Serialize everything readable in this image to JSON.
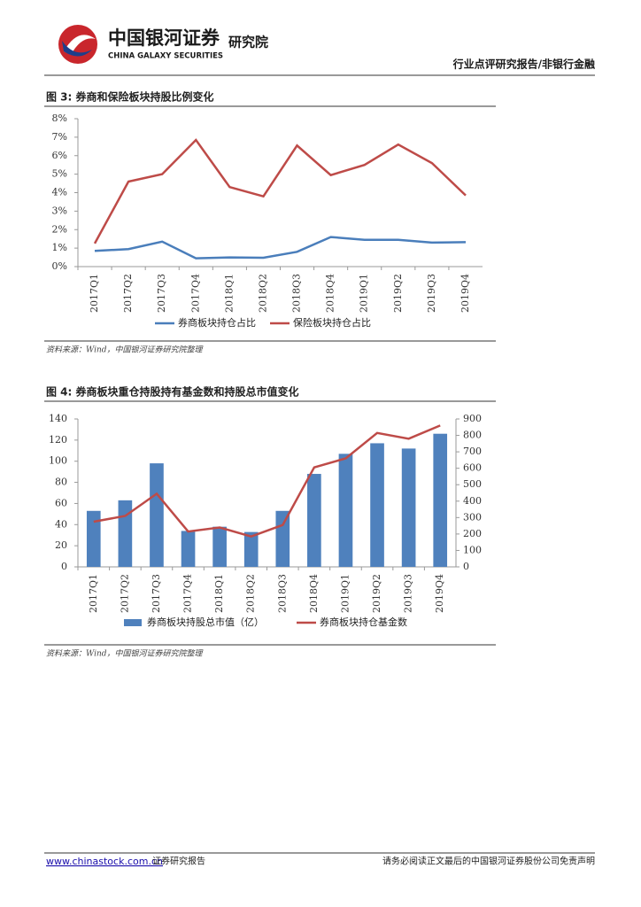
{
  "header": {
    "logo_cn": "中国银河证券",
    "logo_en": "CHINA GALAXY SECURITIES",
    "institute": "研究院",
    "report_type": "行业点评研究报告/非银行金融"
  },
  "chart_data": [
    {
      "type": "line",
      "title": "图 3: 券商和保险板块持股比例变化",
      "categories": [
        "2017Q1",
        "2017Q2",
        "2017Q3",
        "2017Q4",
        "2018Q1",
        "2018Q2",
        "2018Q3",
        "2018Q4",
        "2019Q1",
        "2019Q2",
        "2019Q3",
        "2019Q4"
      ],
      "series": [
        {
          "name": "券商板块持仓占比",
          "color": "#4a7ebb",
          "values": [
            0.85,
            0.95,
            1.35,
            0.45,
            0.5,
            0.48,
            0.8,
            1.6,
            1.45,
            1.45,
            1.3,
            1.32
          ]
        },
        {
          "name": "保险板块持仓占比",
          "color": "#be4b48",
          "values": [
            1.25,
            4.6,
            5.0,
            6.85,
            4.3,
            3.8,
            6.55,
            4.95,
            5.5,
            6.6,
            5.6,
            3.85
          ]
        }
      ],
      "ylim": [
        0,
        8
      ],
      "yticks": [
        {
          "value": 0,
          "label": "0%"
        },
        {
          "value": 1,
          "label": "1%"
        },
        {
          "value": 2,
          "label": "2%"
        },
        {
          "value": 3,
          "label": "3%"
        },
        {
          "value": 4,
          "label": "4%"
        },
        {
          "value": 5,
          "label": "5%"
        },
        {
          "value": 6,
          "label": "6%"
        },
        {
          "value": 7,
          "label": "7%"
        },
        {
          "value": 8,
          "label": "8%"
        }
      ],
      "source": "资料来源：Wind，中国银河证券研究院整理"
    },
    {
      "type": "combo",
      "title": "图 4: 券商板块重仓持股持有基金数和持股总市值变化",
      "categories": [
        "2017Q1",
        "2017Q2",
        "2017Q3",
        "2017Q4",
        "2018Q1",
        "2018Q2",
        "2018Q3",
        "2018Q4",
        "2019Q1",
        "2019Q2",
        "2019Q3",
        "2019Q4"
      ],
      "series": [
        {
          "name": "券商板块持股总市值（亿）",
          "type": "bar",
          "color": "#4f81bd",
          "values": [
            53,
            63,
            98,
            34,
            38,
            33,
            53,
            88,
            107,
            117,
            112,
            126
          ]
        },
        {
          "name": "券商板块持仓基金数",
          "type": "line",
          "axis": "y2",
          "color": "#be4b48",
          "values": [
            275,
            310,
            445,
            215,
            240,
            185,
            255,
            605,
            660,
            815,
            780,
            860
          ]
        }
      ],
      "ylim": [
        0,
        140
      ],
      "yticks": [
        0,
        20,
        40,
        60,
        80,
        100,
        120,
        140
      ],
      "y2lim": [
        0,
        900
      ],
      "y2ticks": [
        0,
        100,
        200,
        300,
        400,
        500,
        600,
        700,
        800,
        900
      ],
      "source": "资料来源：Wind，中国银河证券研究院整理"
    }
  ],
  "footer": {
    "website": "www.chinastock.com.cn",
    "label": "证券研究报告",
    "disclaimer": "请务必阅读正文最后的中国银河证券股份公司免责声明"
  }
}
